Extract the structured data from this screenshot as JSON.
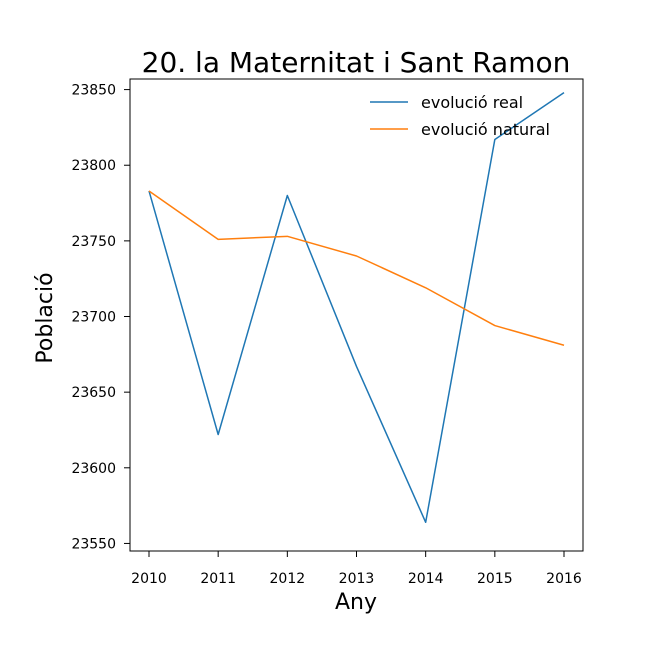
{
  "chart_data": {
    "type": "line",
    "title": "20. la Maternitat i Sant Ramon",
    "xlabel": "Any",
    "ylabel": "Població",
    "x": [
      2010,
      2011,
      2012,
      2013,
      2014,
      2015,
      2016
    ],
    "xticks": [
      "2010",
      "2011",
      "2012",
      "2013",
      "2014",
      "2015",
      "2016"
    ],
    "yticks": [
      "23550",
      "23600",
      "23650",
      "23700",
      "23750",
      "23800",
      "23850"
    ],
    "ylim": [
      23545,
      23857
    ],
    "legend_position": "top-right",
    "grid": false,
    "series": [
      {
        "name": "evolució real",
        "color": "#1f77b4",
        "values": [
          23783,
          23622,
          23780,
          23667,
          23564,
          23817,
          23848
        ]
      },
      {
        "name": "evolució natural",
        "color": "#ff7f0e",
        "values": [
          23783,
          23751,
          23753,
          23740,
          23719,
          23694,
          23681
        ]
      }
    ]
  }
}
